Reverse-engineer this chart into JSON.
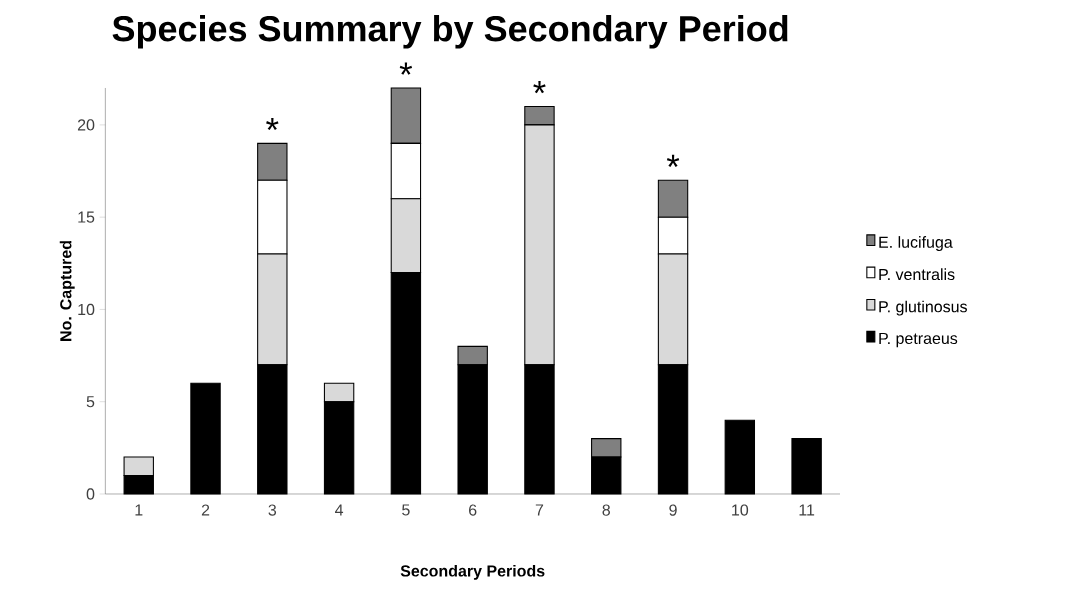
{
  "chart_data": {
    "type": "bar",
    "stacked": true,
    "title": "Species Summary by Secondary Period",
    "xlabel": "Secondary Periods",
    "ylabel": "No. Captured",
    "categories": [
      "1",
      "2",
      "3",
      "4",
      "5",
      "6",
      "7",
      "8",
      "9",
      "10",
      "11"
    ],
    "series": [
      {
        "name": "P. petraeus",
        "color": "#000000",
        "values": [
          1,
          6,
          7,
          5,
          12,
          7,
          7,
          2,
          7,
          4,
          3
        ]
      },
      {
        "name": "P. glutinosus",
        "color": "#d9d9d9",
        "values": [
          1,
          0,
          6,
          1,
          4,
          0,
          13,
          0,
          6,
          0,
          0
        ]
      },
      {
        "name": "P. ventralis",
        "color": "#ffffff",
        "values": [
          0,
          0,
          4,
          0,
          3,
          0,
          0,
          0,
          2,
          0,
          0
        ]
      },
      {
        "name": "E. lucifuga",
        "color": "#808080",
        "values": [
          0,
          0,
          2,
          0,
          3,
          1,
          1,
          1,
          2,
          0,
          0
        ]
      }
    ],
    "ylim": [
      0,
      22
    ],
    "yticks": [
      0,
      5,
      10,
      15,
      20
    ],
    "grid": false,
    "legend": "right",
    "annotations": [
      {
        "text": "*",
        "x": "3",
        "y": 19
      },
      {
        "text": "*",
        "x": "5",
        "y": 22
      },
      {
        "text": "*",
        "x": "7",
        "y": 21
      },
      {
        "text": "*",
        "x": "9",
        "y": 17
      }
    ]
  }
}
